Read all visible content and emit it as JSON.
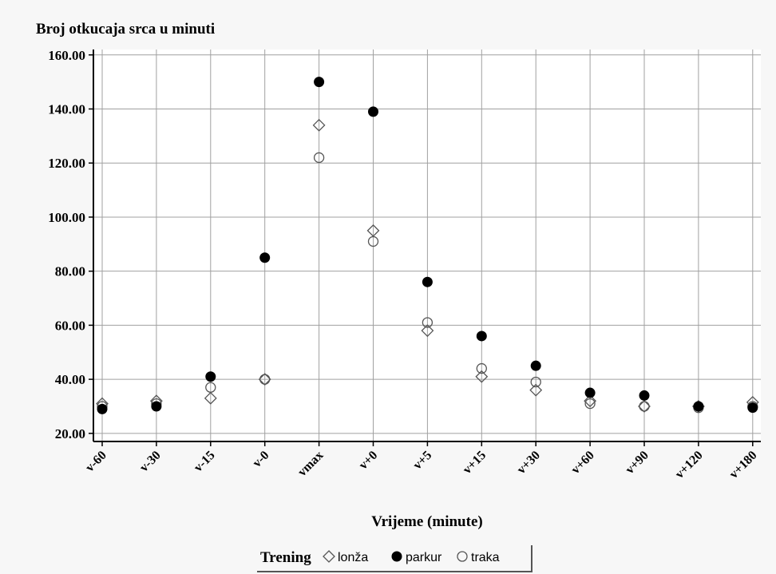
{
  "chart_data": {
    "type": "scatter",
    "title": "Broj otkucaja srca u minuti",
    "xlabel": "Vrijeme (minute)",
    "ylabel": "",
    "categories": [
      "v-60",
      "v-30",
      "v-15",
      "v-0",
      "vmax",
      "v+0",
      "v+5",
      "v+15",
      "v+30",
      "v+60",
      "v+90",
      "v+120",
      "v+180"
    ],
    "yticks": [
      "20.00",
      "40.00",
      "60.00",
      "80.00",
      "100.00",
      "120.00",
      "140.00",
      "160.00"
    ],
    "ylim": [
      17,
      162
    ],
    "grid": true,
    "legend": {
      "title": "Trening",
      "placement": "bottom-center"
    },
    "series": [
      {
        "name": "lonža",
        "marker": "diamond-open",
        "values": [
          31,
          32,
          33,
          40,
          134,
          95,
          58,
          41,
          36,
          32,
          30,
          30,
          31.5
        ]
      },
      {
        "name": "parkur",
        "marker": "circle-filled",
        "values": [
          29,
          30,
          41,
          85,
          150,
          139,
          76,
          56,
          45,
          35,
          34,
          30,
          29.5
        ]
      },
      {
        "name": "traka",
        "marker": "circle-open",
        "values": [
          30,
          31,
          37,
          40,
          122,
          91,
          61,
          44,
          39,
          31,
          30,
          29.5,
          30
        ]
      }
    ],
    "colors": {
      "plot_background": "#ffffff",
      "page_background": "#f7f7f7",
      "grid": "#a0a0a0",
      "axis": "#000000",
      "marker": "#000000"
    }
  }
}
